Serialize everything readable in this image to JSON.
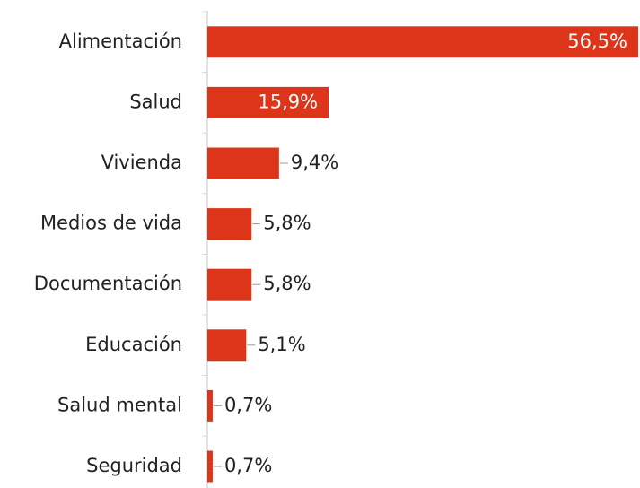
{
  "chart_data": {
    "type": "barh",
    "categories": [
      "Alimentación",
      "Salud",
      "Vivienda",
      "Medios de vida",
      "Documentación",
      "Educación",
      "Salud mental",
      "Seguridad"
    ],
    "values": [
      56.5,
      15.9,
      9.4,
      5.8,
      5.8,
      5.1,
      0.7,
      0.7
    ],
    "value_labels": [
      "56,5%",
      "15,9%",
      "9,4%",
      "5,8%",
      "5,8%",
      "5,1%",
      "0,7%",
      "0,7%"
    ],
    "color": "#dc3519"
  }
}
